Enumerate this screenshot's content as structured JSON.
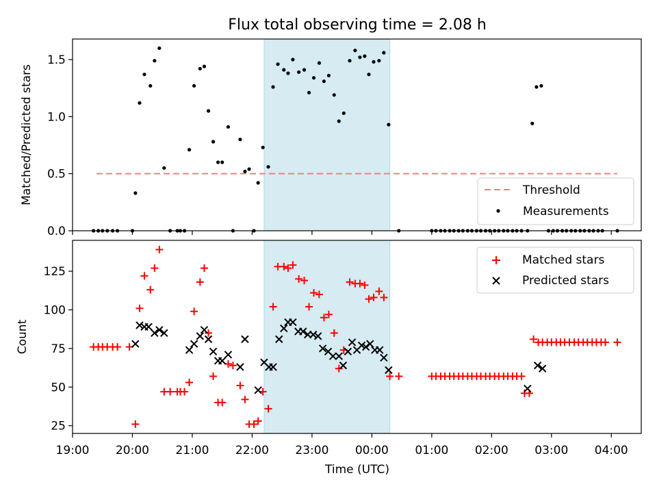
{
  "chart_data": [
    {
      "type": "scatter",
      "title": "Flux total observing time = 2.08 h",
      "ylabel": "Matched/Predicted stars",
      "xlim_hours": [
        19.0,
        28.5
      ],
      "ylim": [
        0,
        1.68
      ],
      "yticks": [
        0.0,
        0.5,
        1.0,
        1.5
      ],
      "ytick_labels": [
        "0.0",
        "0.5",
        "1.0",
        "1.5"
      ],
      "colors": {
        "measurements": "#000000",
        "threshold": "#f08080",
        "span": "#add8e6"
      },
      "threshold": {
        "name": "Threshold",
        "value": 0.5,
        "x_range_hours": [
          19.4,
          28.1
        ]
      },
      "shaded_span_hours": [
        22.2,
        24.3
      ],
      "legend": {
        "position": "lower-right",
        "entries": [
          "Threshold",
          "Measurements"
        ]
      },
      "series": [
        {
          "name": "Measurements",
          "x_hours": [
            19.35,
            19.43,
            19.5,
            19.58,
            19.67,
            19.75,
            20.0,
            20.05,
            20.12,
            20.2,
            20.3,
            20.37,
            20.45,
            20.53,
            20.63,
            20.75,
            20.8,
            20.87,
            20.95,
            21.03,
            21.13,
            21.2,
            21.27,
            21.35,
            21.43,
            21.5,
            21.6,
            21.68,
            21.8,
            21.88,
            21.95,
            22.03,
            22.1,
            22.18,
            22.27,
            22.35,
            22.43,
            22.53,
            22.6,
            22.68,
            22.78,
            22.87,
            22.95,
            23.03,
            23.12,
            23.2,
            23.28,
            23.37,
            23.45,
            23.53,
            23.63,
            23.72,
            23.8,
            23.88,
            23.95,
            24.03,
            24.12,
            24.2,
            24.28,
            24.45,
            25.0,
            25.07,
            25.15,
            25.22,
            25.3,
            25.37,
            25.45,
            25.52,
            25.6,
            25.67,
            25.75,
            25.82,
            25.9,
            25.97,
            26.05,
            26.12,
            26.2,
            26.27,
            26.35,
            26.42,
            26.5,
            26.6,
            26.68,
            26.75,
            26.83,
            26.95,
            27.03,
            27.1,
            27.18,
            27.25,
            27.33,
            27.4,
            27.48,
            27.55,
            27.63,
            27.7,
            27.78,
            27.85,
            28.1
          ],
          "y": [
            0,
            0,
            0,
            0,
            0,
            0,
            0,
            0.33,
            1.12,
            1.37,
            1.27,
            1.49,
            1.6,
            0.55,
            0,
            0,
            0,
            0,
            0.71,
            1.27,
            1.42,
            1.44,
            1.05,
            0.78,
            0.6,
            0.6,
            0.91,
            0,
            0.8,
            0.52,
            0.54,
            0,
            0.42,
            0.73,
            0.56,
            1.26,
            1.46,
            1.41,
            1.38,
            1.5,
            1.39,
            1.41,
            1.21,
            1.34,
            1.47,
            1.31,
            1.36,
            1.19,
            0.96,
            1.03,
            1.49,
            1.58,
            1.52,
            1.53,
            1.37,
            1.48,
            1.49,
            1.56,
            0.93,
            0,
            0,
            0,
            0,
            0,
            0,
            0,
            0,
            0,
            0,
            0,
            0,
            0,
            0,
            0,
            0,
            0,
            0,
            0,
            0,
            0,
            0,
            0,
            0.94,
            1.26,
            1.27,
            0,
            0,
            0,
            0,
            0,
            0,
            0,
            0,
            0,
            0,
            0,
            0,
            0,
            0
          ]
        }
      ]
    },
    {
      "type": "scatter",
      "xlabel": "Time (UTC)",
      "ylabel": "Count",
      "xlim_hours": [
        19.0,
        28.5
      ],
      "ylim": [
        20,
        145
      ],
      "yticks": [
        25,
        50,
        75,
        100,
        125
      ],
      "ytick_labels": [
        "25",
        "50",
        "75",
        "100",
        "125"
      ],
      "xticks_hours": [
        19,
        20,
        21,
        22,
        23,
        24,
        25,
        26,
        27,
        28
      ],
      "xtick_labels": [
        "19:00",
        "20:00",
        "21:00",
        "22:00",
        "23:00",
        "00:00",
        "01:00",
        "02:00",
        "03:00",
        "04:00"
      ],
      "colors": {
        "matched": "#ff0000",
        "predicted": "#000000",
        "span": "#add8e6"
      },
      "shaded_span_hours": [
        22.2,
        24.3
      ],
      "legend": {
        "position": "top-right",
        "entries": [
          "Matched stars",
          "Predicted stars"
        ]
      },
      "series": [
        {
          "name": "Matched stars",
          "marker": "plus",
          "x_hours": [
            19.35,
            19.43,
            19.5,
            19.58,
            19.67,
            19.75,
            19.95,
            20.05,
            20.12,
            20.2,
            20.3,
            20.37,
            20.45,
            20.53,
            20.63,
            20.75,
            20.8,
            20.87,
            20.95,
            21.03,
            21.13,
            21.2,
            21.27,
            21.35,
            21.43,
            21.5,
            21.6,
            21.68,
            21.8,
            21.88,
            21.95,
            22.03,
            22.1,
            22.18,
            22.27,
            22.35,
            22.43,
            22.53,
            22.6,
            22.68,
            22.78,
            22.87,
            22.95,
            23.03,
            23.12,
            23.2,
            23.28,
            23.37,
            23.45,
            23.53,
            23.63,
            23.72,
            23.8,
            23.88,
            23.95,
            24.03,
            24.12,
            24.2,
            24.3,
            24.45,
            25.0,
            25.07,
            25.15,
            25.22,
            25.3,
            25.37,
            25.45,
            25.52,
            25.6,
            25.67,
            25.75,
            25.82,
            25.9,
            25.97,
            26.05,
            26.12,
            26.2,
            26.27,
            26.35,
            26.42,
            26.5,
            26.55,
            26.63,
            26.7,
            26.78,
            26.85,
            26.93,
            27.0,
            27.08,
            27.15,
            27.22,
            27.3,
            27.38,
            27.45,
            27.53,
            27.6,
            27.68,
            27.75,
            27.83,
            27.9,
            28.1
          ],
          "y": [
            76,
            76,
            76,
            76,
            76,
            76,
            76,
            26,
            101,
            122,
            113,
            127,
            139,
            47,
            47,
            47,
            47,
            47,
            53,
            99,
            118,
            127,
            85,
            57,
            40,
            40,
            65,
            64,
            51,
            42,
            26,
            26,
            28,
            47,
            36,
            102,
            128,
            128,
            127,
            129,
            120,
            119,
            102,
            111,
            110,
            95,
            97,
            85,
            62,
            74,
            118,
            117,
            117,
            116,
            107,
            108,
            112,
            108,
            57,
            57,
            57,
            57,
            57,
            57,
            57,
            57,
            57,
            57,
            57,
            57,
            57,
            57,
            57,
            57,
            57,
            57,
            57,
            57,
            57,
            57,
            57,
            46,
            46,
            81,
            79,
            79,
            79,
            79,
            79,
            79,
            79,
            79,
            79,
            79,
            79,
            79,
            79,
            79,
            79,
            79,
            79
          ]
        },
        {
          "name": "Predicted stars",
          "marker": "x",
          "x_hours": [
            20.05,
            20.12,
            20.2,
            20.27,
            20.37,
            20.45,
            20.53,
            20.95,
            21.03,
            21.13,
            21.2,
            21.27,
            21.35,
            21.43,
            21.5,
            21.6,
            21.8,
            21.88,
            22.1,
            22.2,
            22.28,
            22.35,
            22.45,
            22.53,
            22.6,
            22.68,
            22.77,
            22.85,
            22.93,
            23.02,
            23.1,
            23.18,
            23.27,
            23.35,
            23.45,
            23.52,
            23.6,
            23.67,
            23.75,
            23.83,
            23.9,
            23.97,
            24.05,
            24.13,
            24.2,
            24.28,
            26.6,
            26.77,
            26.85
          ],
          "y": [
            78,
            90,
            89,
            89,
            85,
            87,
            85,
            74,
            78,
            83,
            87,
            81,
            73,
            67,
            67,
            71,
            63,
            81,
            48,
            66,
            63,
            63,
            81,
            88,
            92,
            92,
            86,
            86,
            84,
            84,
            83,
            75,
            73,
            70,
            70,
            64,
            73,
            79,
            74,
            77,
            76,
            78,
            74,
            74,
            69,
            61,
            49,
            64,
            62
          ]
        }
      ]
    }
  ]
}
